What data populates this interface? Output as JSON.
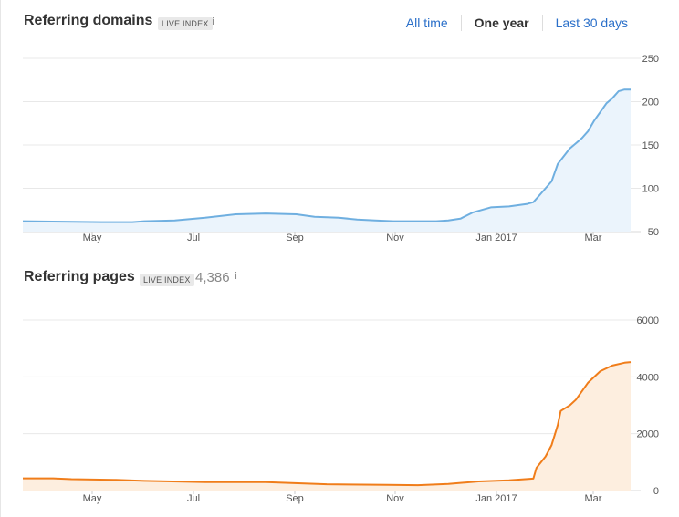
{
  "header": {
    "title": "Referring domains",
    "badge": "LIVE INDEX",
    "info": "i",
    "tabs": [
      {
        "label": "All time",
        "active": false
      },
      {
        "label": "One year",
        "active": true
      },
      {
        "label": "Last 30 days",
        "active": false
      }
    ]
  },
  "pages_panel": {
    "title": "Referring pages",
    "badge": "LIVE INDEX",
    "count": "4,386",
    "info": "i"
  },
  "colors": {
    "domains_line": "#6fafe0",
    "domains_fill": "#ebf4fc",
    "pages_line": "#f07d1a",
    "pages_fill": "#fdeedf",
    "tab_link": "#2a6fc9"
  },
  "chart_data": [
    {
      "type": "area",
      "title": "Referring domains",
      "x_ticks": [
        "May",
        "Jul",
        "Sep",
        "Nov",
        "Jan 2017",
        "Mar"
      ],
      "y_ticks": [
        250,
        200,
        150,
        100,
        50
      ],
      "ylim": [
        50,
        250
      ],
      "grid": true,
      "series": [
        {
          "points": [
            [
              0,
              62
            ],
            [
              0.13,
              61
            ],
            [
              0.18,
              61
            ],
            [
              0.2,
              62
            ],
            [
              0.25,
              63
            ],
            [
              0.3,
              66
            ],
            [
              0.35,
              70
            ],
            [
              0.4,
              71
            ],
            [
              0.45,
              70
            ],
            [
              0.48,
              67
            ],
            [
              0.52,
              66
            ],
            [
              0.55,
              64
            ],
            [
              0.58,
              63
            ],
            [
              0.61,
              62
            ],
            [
              0.65,
              62
            ],
            [
              0.68,
              62
            ],
            [
              0.7,
              63
            ],
            [
              0.72,
              65
            ],
            [
              0.74,
              72
            ],
            [
              0.77,
              78
            ],
            [
              0.8,
              79
            ],
            [
              0.83,
              82
            ],
            [
              0.84,
              84
            ],
            [
              0.85,
              92
            ],
            [
              0.87,
              108
            ],
            [
              0.88,
              128
            ],
            [
              0.9,
              146
            ],
            [
              0.91,
              152
            ],
            [
              0.92,
              158
            ],
            [
              0.93,
              166
            ],
            [
              0.94,
              178
            ],
            [
              0.95,
              188
            ],
            [
              0.96,
              198
            ],
            [
              0.97,
              204
            ],
            [
              0.98,
              212
            ],
            [
              0.99,
              214
            ],
            [
              1.0,
              214
            ]
          ]
        }
      ]
    },
    {
      "type": "area",
      "title": "Referring pages",
      "x_ticks": [
        "May",
        "Jul",
        "Sep",
        "Nov",
        "Jan 2017",
        "Mar"
      ],
      "y_ticks": [
        6000,
        4000,
        2000,
        0
      ],
      "ylim": [
        0,
        6000
      ],
      "grid": true,
      "series": [
        {
          "points": [
            [
              0,
              430
            ],
            [
              0.05,
              430
            ],
            [
              0.08,
              400
            ],
            [
              0.15,
              380
            ],
            [
              0.2,
              340
            ],
            [
              0.3,
              300
            ],
            [
              0.4,
              300
            ],
            [
              0.5,
              220
            ],
            [
              0.6,
              200
            ],
            [
              0.65,
              190
            ],
            [
              0.7,
              230
            ],
            [
              0.75,
              320
            ],
            [
              0.8,
              360
            ],
            [
              0.84,
              420
            ],
            [
              0.845,
              800
            ],
            [
              0.86,
              1200
            ],
            [
              0.87,
              1600
            ],
            [
              0.88,
              2300
            ],
            [
              0.885,
              2800
            ],
            [
              0.9,
              3000
            ],
            [
              0.91,
              3200
            ],
            [
              0.93,
              3800
            ],
            [
              0.95,
              4200
            ],
            [
              0.97,
              4400
            ],
            [
              0.99,
              4500
            ],
            [
              1.0,
              4520
            ]
          ]
        }
      ]
    }
  ]
}
